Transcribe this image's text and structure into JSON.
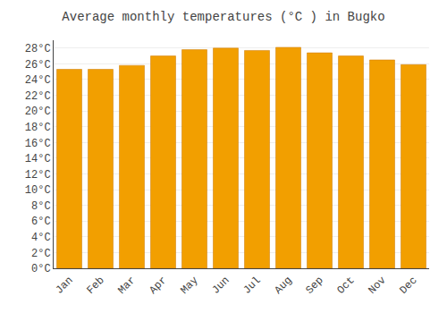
{
  "chart_data": {
    "type": "bar",
    "title": "Average monthly temperatures (°C ) in Bugko",
    "categories": [
      "Jan",
      "Feb",
      "Mar",
      "Apr",
      "May",
      "Jun",
      "Jul",
      "Aug",
      "Sep",
      "Oct",
      "Nov",
      "Dec"
    ],
    "values": [
      25.3,
      25.3,
      25.8,
      27.0,
      27.8,
      28.0,
      27.7,
      28.1,
      27.4,
      27.0,
      26.5,
      25.9
    ],
    "color": "#F29F00",
    "ylim": [
      0,
      29
    ],
    "yticks": [
      {
        "value": 0,
        "label": "0°C"
      },
      {
        "value": 2,
        "label": "2°C"
      },
      {
        "value": 4,
        "label": "4°C"
      },
      {
        "value": 6,
        "label": "6°C"
      },
      {
        "value": 8,
        "label": "8°C"
      },
      {
        "value": 10,
        "label": "10°C"
      },
      {
        "value": 12,
        "label": "12°C"
      },
      {
        "value": 14,
        "label": "14°C"
      },
      {
        "value": 16,
        "label": "16°C"
      },
      {
        "value": 18,
        "label": "18°C"
      },
      {
        "value": 20,
        "label": "20°C"
      },
      {
        "value": 22,
        "label": "22°C"
      },
      {
        "value": 24,
        "label": "24°C"
      },
      {
        "value": 26,
        "label": "26°C"
      },
      {
        "value": 28,
        "label": "28°C"
      }
    ],
    "grid": true
  }
}
